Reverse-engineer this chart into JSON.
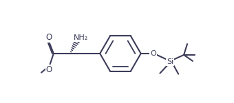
{
  "bg_color": "#ffffff",
  "lc": "#3c3c5a",
  "lw": 1.5,
  "fs": 7.5,
  "fw": 3.4,
  "fh": 1.5,
  "dpi": 100,
  "xlim": [
    0,
    34
  ],
  "ylim": [
    0,
    15
  ]
}
